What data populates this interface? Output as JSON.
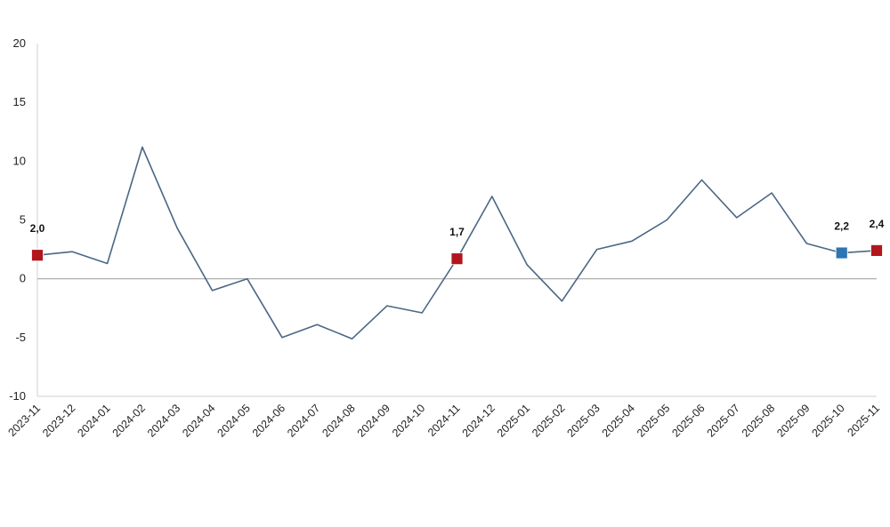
{
  "chart_data": {
    "type": "line",
    "title": "",
    "xlabel": "",
    "ylabel": "",
    "ylim": [
      -10,
      20
    ],
    "yticks": [
      -10,
      -5,
      0,
      5,
      10,
      15,
      20
    ],
    "grid": false,
    "legend": "none",
    "categories": [
      "2023-11",
      "2023-12",
      "2024-01",
      "2024-02",
      "2024-03",
      "2024-04",
      "2024-05",
      "2024-06",
      "2024-07",
      "2024-08",
      "2024-09",
      "2024-10",
      "2024-11",
      "2024-12",
      "2025-01",
      "2025-02",
      "2025-03",
      "2025-04",
      "2025-05",
      "2025-06",
      "2025-07",
      "2025-08",
      "2025-09",
      "2025-10",
      "2025-11"
    ],
    "series": [
      {
        "values": [
          2.0,
          2.3,
          1.3,
          11.2,
          4.3,
          -1.0,
          0.0,
          -5.0,
          -3.9,
          -5.1,
          -2.3,
          -2.9,
          1.7,
          7.0,
          1.2,
          -1.9,
          2.5,
          3.2,
          5.0,
          8.4,
          5.2,
          7.3,
          3.0,
          2.2,
          2.4
        ],
        "color": "#4a6785"
      }
    ],
    "highlighted_points": [
      {
        "index": 0,
        "label": "2,0",
        "color": "#b0161c"
      },
      {
        "index": 12,
        "label": "1,7",
        "color": "#b0161c"
      },
      {
        "index": 23,
        "label": "2,2",
        "color": "#2e75b6"
      },
      {
        "index": 24,
        "label": "2,4",
        "color": "#b0161c"
      }
    ],
    "zero_line_color": "#a6a6a6",
    "axis_color": "#d0d0d0"
  }
}
